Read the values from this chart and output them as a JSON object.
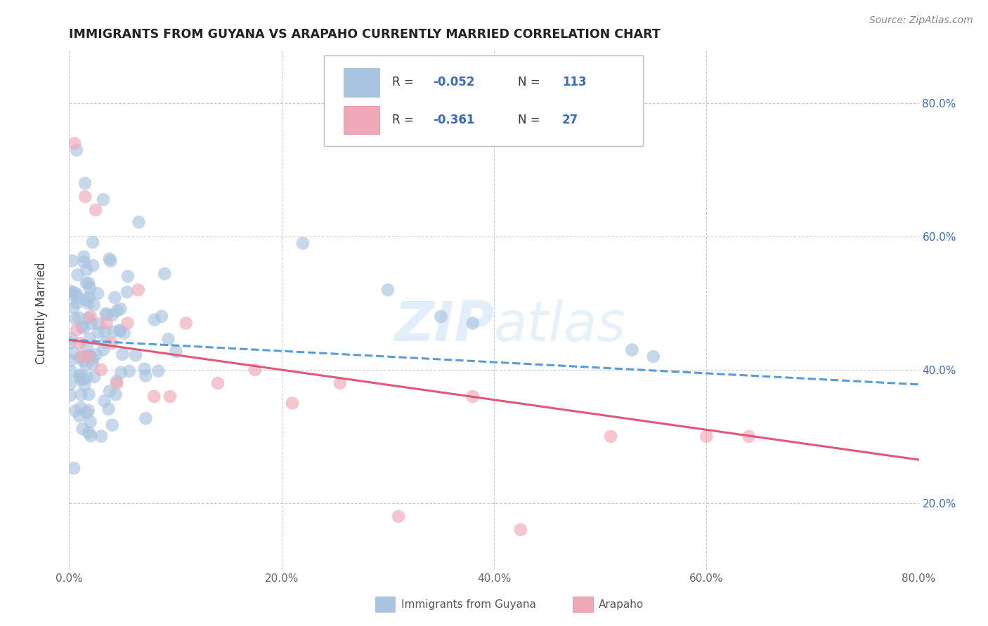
{
  "title": "IMMIGRANTS FROM GUYANA VS ARAPAHO CURRENTLY MARRIED CORRELATION CHART",
  "source": "Source: ZipAtlas.com",
  "xlabel_legend1": "Immigrants from Guyana",
  "xlabel_legend2": "Arapaho",
  "ylabel": "Currently Married",
  "xlim": [
    0.0,
    0.8
  ],
  "ylim": [
    0.1,
    0.88
  ],
  "xticks": [
    0.0,
    0.2,
    0.4,
    0.6,
    0.8
  ],
  "yticks": [
    0.2,
    0.4,
    0.6,
    0.8
  ],
  "ytick_labels": [
    "20.0%",
    "40.0%",
    "60.0%",
    "80.0%"
  ],
  "xtick_labels": [
    "0.0%",
    "20.0%",
    "40.0%",
    "60.0%",
    "80.0%"
  ],
  "blue_color": "#a8c4e0",
  "pink_color": "#f0a8b8",
  "blue_line_color": "#5b9bd5",
  "pink_line_color": "#e05878",
  "legend_text_color": "#3a6abf",
  "background_color": "#ffffff",
  "grid_color": "#cccccc",
  "blue_line_start_y": 0.445,
  "blue_line_end_y": 0.378,
  "pink_line_start_y": 0.445,
  "pink_line_end_y": 0.265
}
